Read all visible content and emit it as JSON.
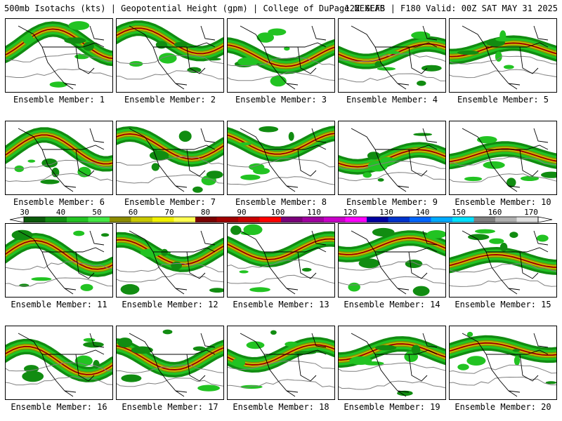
{
  "header": {
    "left": "500mb Isotachs (kts) | Geopotential Height (gpm) | College of DuPage NEXLAB",
    "right": "12Z GEFS | F180 Valid: 00Z SAT MAY 31 2025"
  },
  "panels": [
    {
      "label": "Ensemble Member: 1"
    },
    {
      "label": "Ensemble Member: 2"
    },
    {
      "label": "Ensemble Member: 3"
    },
    {
      "label": "Ensemble Member: 4"
    },
    {
      "label": "Ensemble Member: 5"
    },
    {
      "label": "Ensemble Member: 6"
    },
    {
      "label": "Ensemble Member: 7"
    },
    {
      "label": "Ensemble Member: 8"
    },
    {
      "label": "Ensemble Member: 9"
    },
    {
      "label": "Ensemble Member: 10"
    },
    {
      "label": "Ensemble Member: 11"
    },
    {
      "label": "Ensemble Member: 12"
    },
    {
      "label": "Ensemble Member: 13"
    },
    {
      "label": "Ensemble Member: 14"
    },
    {
      "label": "Ensemble Member: 15"
    },
    {
      "label": "Ensemble Member: 16"
    },
    {
      "label": "Ensemble Member: 17"
    },
    {
      "label": "Ensemble Member: 18"
    },
    {
      "label": "Ensemble Member: 19"
    },
    {
      "label": "Ensemble Member: 20"
    }
  ],
  "colorbar": {
    "ticks": [
      "30",
      "40",
      "50",
      "60",
      "70",
      "80",
      "90",
      "100",
      "110",
      "120",
      "130",
      "140",
      "150",
      "160",
      "170"
    ],
    "colors": [
      "#0a5a0a",
      "#118c11",
      "#22c322",
      "#44e844",
      "#8c8c00",
      "#c8c800",
      "#f0f000",
      "#ffff50",
      "#7a0000",
      "#a00000",
      "#c80000",
      "#ff0000",
      "#7a007a",
      "#a000a0",
      "#c800c8",
      "#ff00ff",
      "#0000a0",
      "#0033cc",
      "#0066ff",
      "#00aaff",
      "#00e0ff",
      "#808080",
      "#b0b0b0",
      "#e0e0e0"
    ]
  }
}
